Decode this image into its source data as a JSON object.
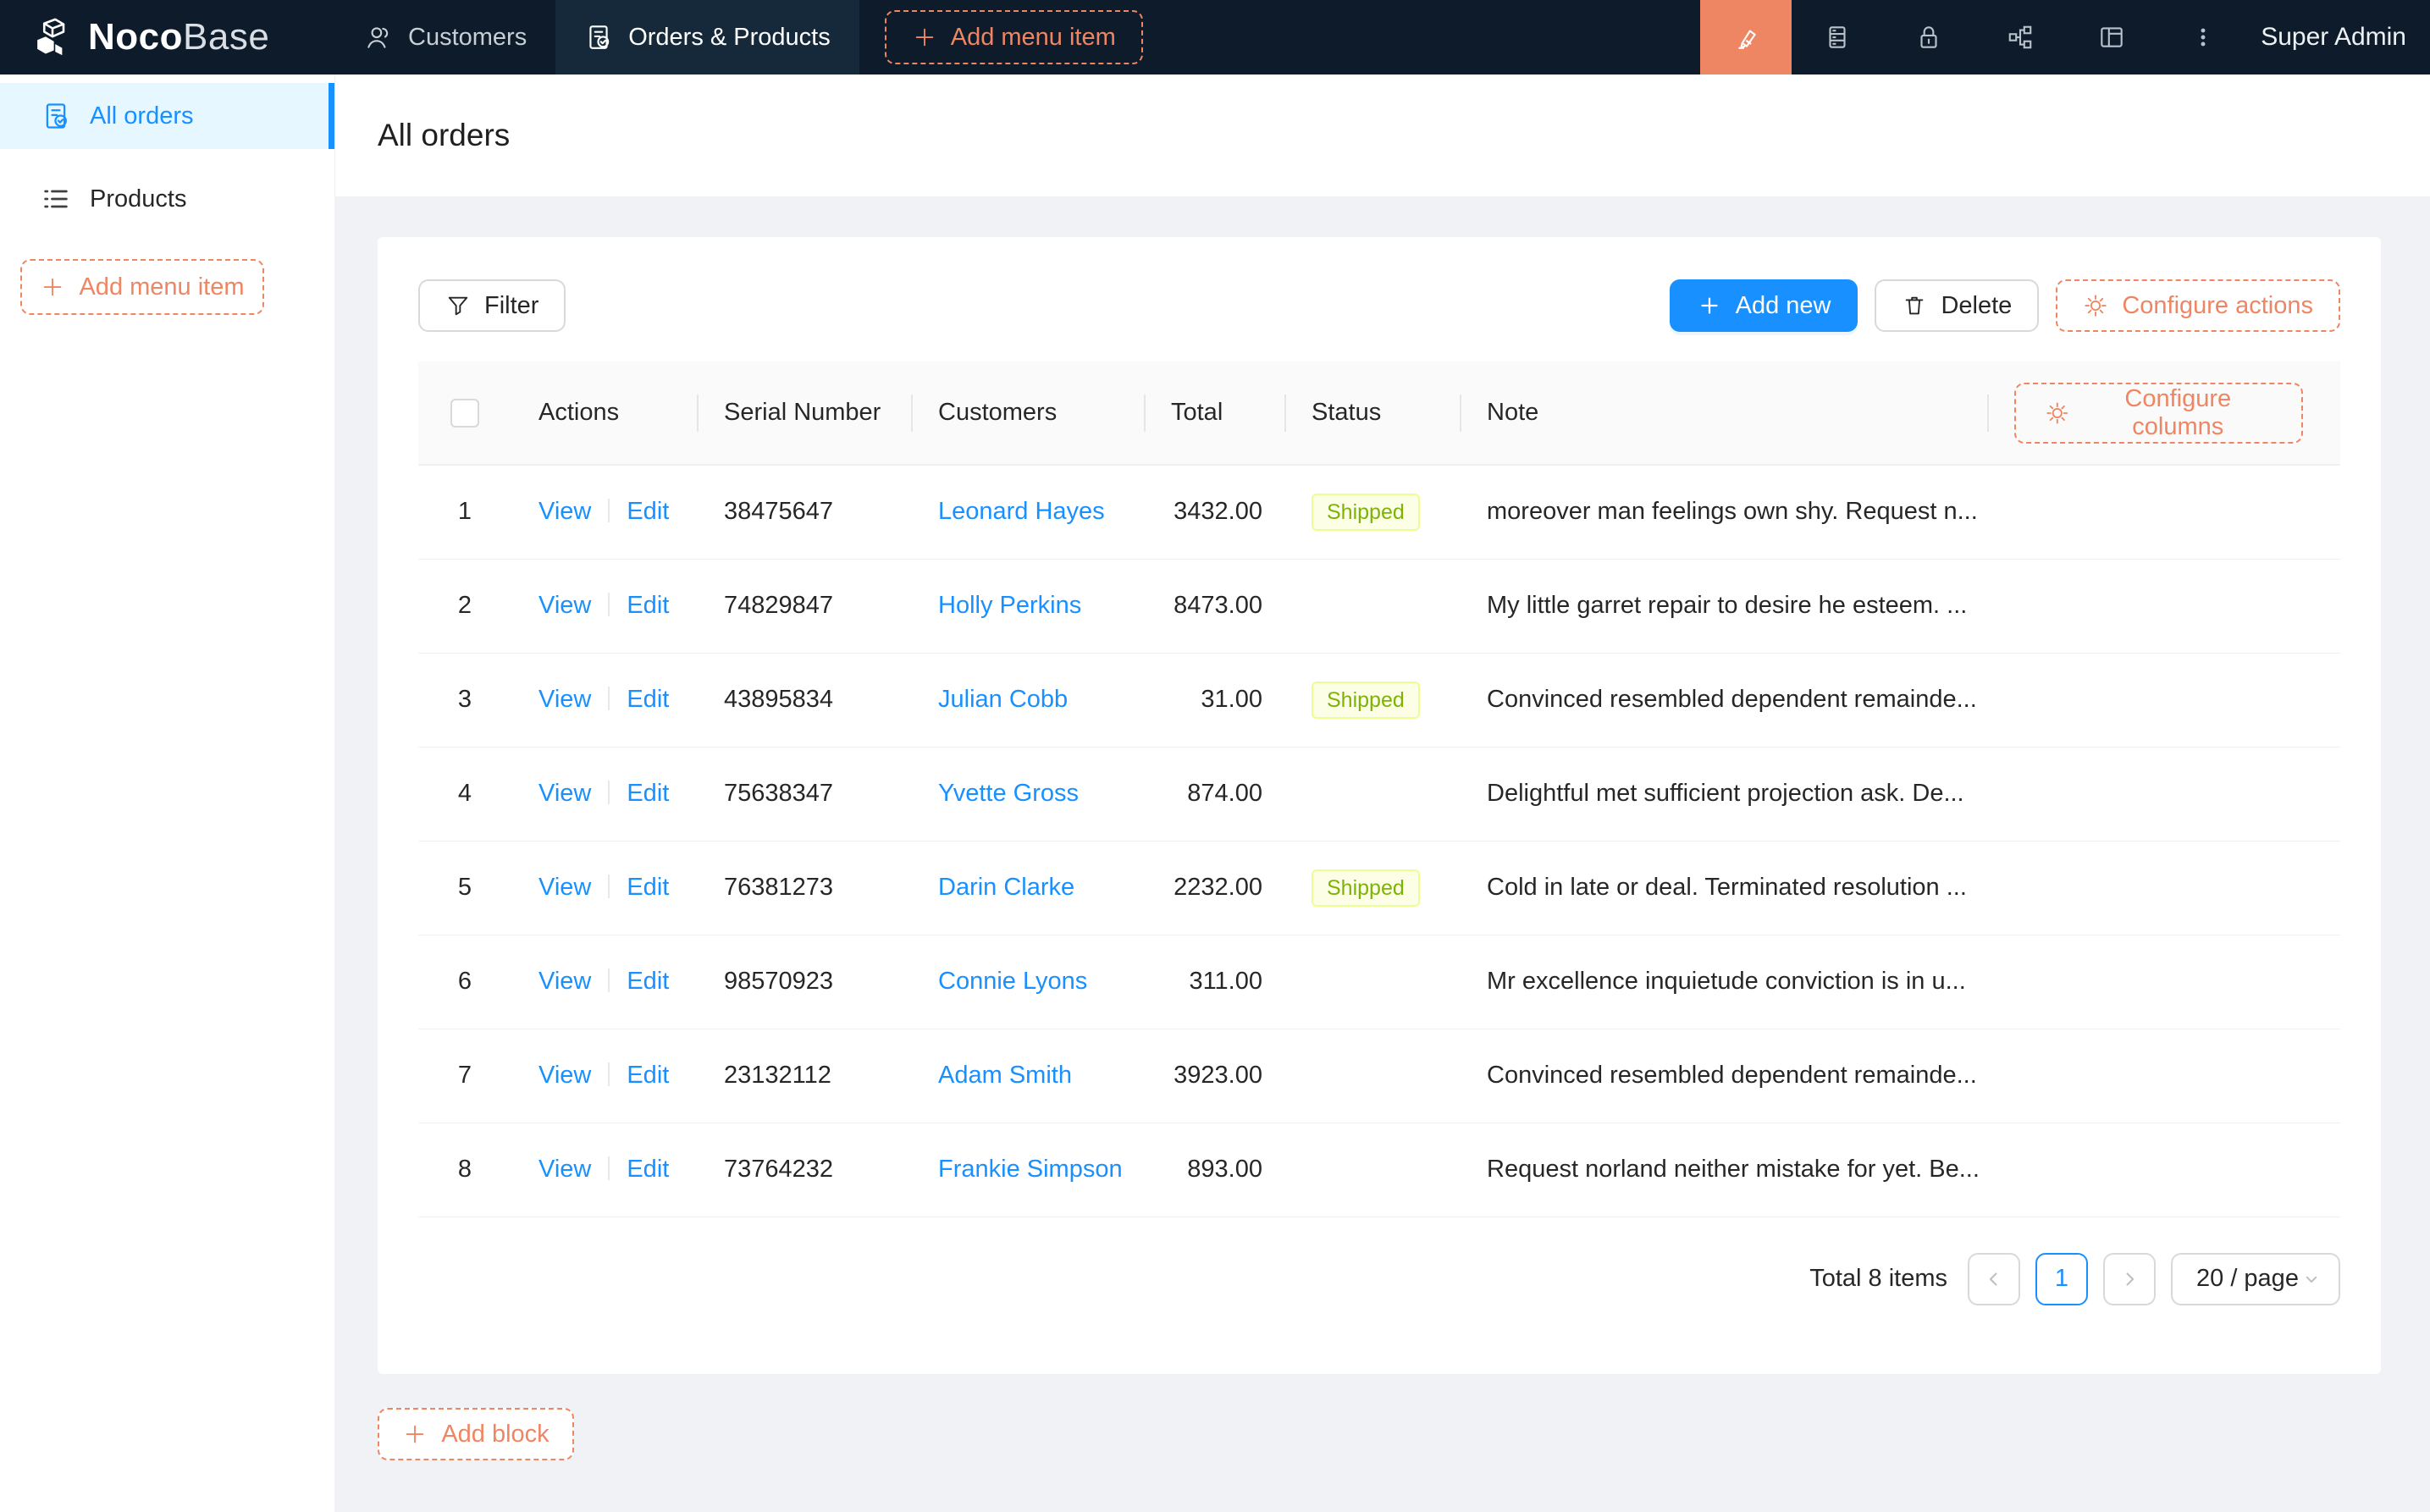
{
  "topbar": {
    "logo_primary": "Noco",
    "logo_secondary": "Base",
    "tabs": [
      {
        "label": "Customers",
        "icon": "customers-icon",
        "active": false
      },
      {
        "label": "Orders & Products",
        "icon": "orders-icon",
        "active": true
      }
    ],
    "add_menu_item_label": "Add menu item",
    "action_icons": [
      "ui-editor",
      "collections",
      "access-control",
      "plugins",
      "layout",
      "more"
    ],
    "user_label": "Super Admin"
  },
  "sidebar": {
    "items": [
      {
        "label": "All orders",
        "icon": "order-icon",
        "active": true
      },
      {
        "label": "Products",
        "icon": "list-icon",
        "active": false
      }
    ],
    "add_menu_item_label": "Add menu item"
  },
  "page": {
    "title": "All orders"
  },
  "toolbar": {
    "filter_label": "Filter",
    "add_new_label": "Add new",
    "delete_label": "Delete",
    "configure_actions_label": "Configure actions"
  },
  "table": {
    "configure_columns_label": "Configure columns",
    "columns": [
      "Actions",
      "Serial Number",
      "Customers",
      "Total",
      "Status",
      "Note"
    ],
    "action_labels": [
      "View",
      "Edit"
    ],
    "rows": [
      {
        "index": "1",
        "serial": "38475647",
        "customer": "Leonard Hayes",
        "total": "3432.00",
        "status": "Shipped",
        "note": "moreover man feelings own shy. Request n..."
      },
      {
        "index": "2",
        "serial": "74829847",
        "customer": "Holly Perkins",
        "total": "8473.00",
        "status": "",
        "note": "My little garret repair to desire he esteem. ..."
      },
      {
        "index": "3",
        "serial": "43895834",
        "customer": "Julian Cobb",
        "total": "31.00",
        "status": "Shipped",
        "note": "Convinced resembled dependent remainde..."
      },
      {
        "index": "4",
        "serial": "75638347",
        "customer": "Yvette Gross",
        "total": "874.00",
        "status": "",
        "note": "Delightful met sufficient projection ask. De..."
      },
      {
        "index": "5",
        "serial": "76381273",
        "customer": "Darin Clarke",
        "total": "2232.00",
        "status": "Shipped",
        "note": "Cold in late or deal. Terminated resolution ..."
      },
      {
        "index": "6",
        "serial": "98570923",
        "customer": "Connie Lyons",
        "total": "311.00",
        "status": "",
        "note": "Mr excellence inquietude conviction is in u..."
      },
      {
        "index": "7",
        "serial": "23132112",
        "customer": "Adam Smith",
        "total": "3923.00",
        "status": "",
        "note": "Convinced resembled dependent remainde..."
      },
      {
        "index": "8",
        "serial": "73764232",
        "customer": "Frankie Simpson",
        "total": "893.00",
        "status": "",
        "note": "Request norland neither mistake for yet. Be..."
      }
    ]
  },
  "pagination": {
    "total_label": "Total 8 items",
    "current_page": "1",
    "page_size_label": "20 / page"
  },
  "footer": {
    "add_block_label": "Add block"
  },
  "colors": {
    "topbar_bg": "#0d1b2a",
    "accent_blue": "#1890ff",
    "accent_coral": "#ee8663",
    "tag_bg": "#fcffe6",
    "tag_border": "#eaff8f",
    "tag_text": "#7cb305",
    "selected_menu_bg": "#e6f7ff"
  }
}
